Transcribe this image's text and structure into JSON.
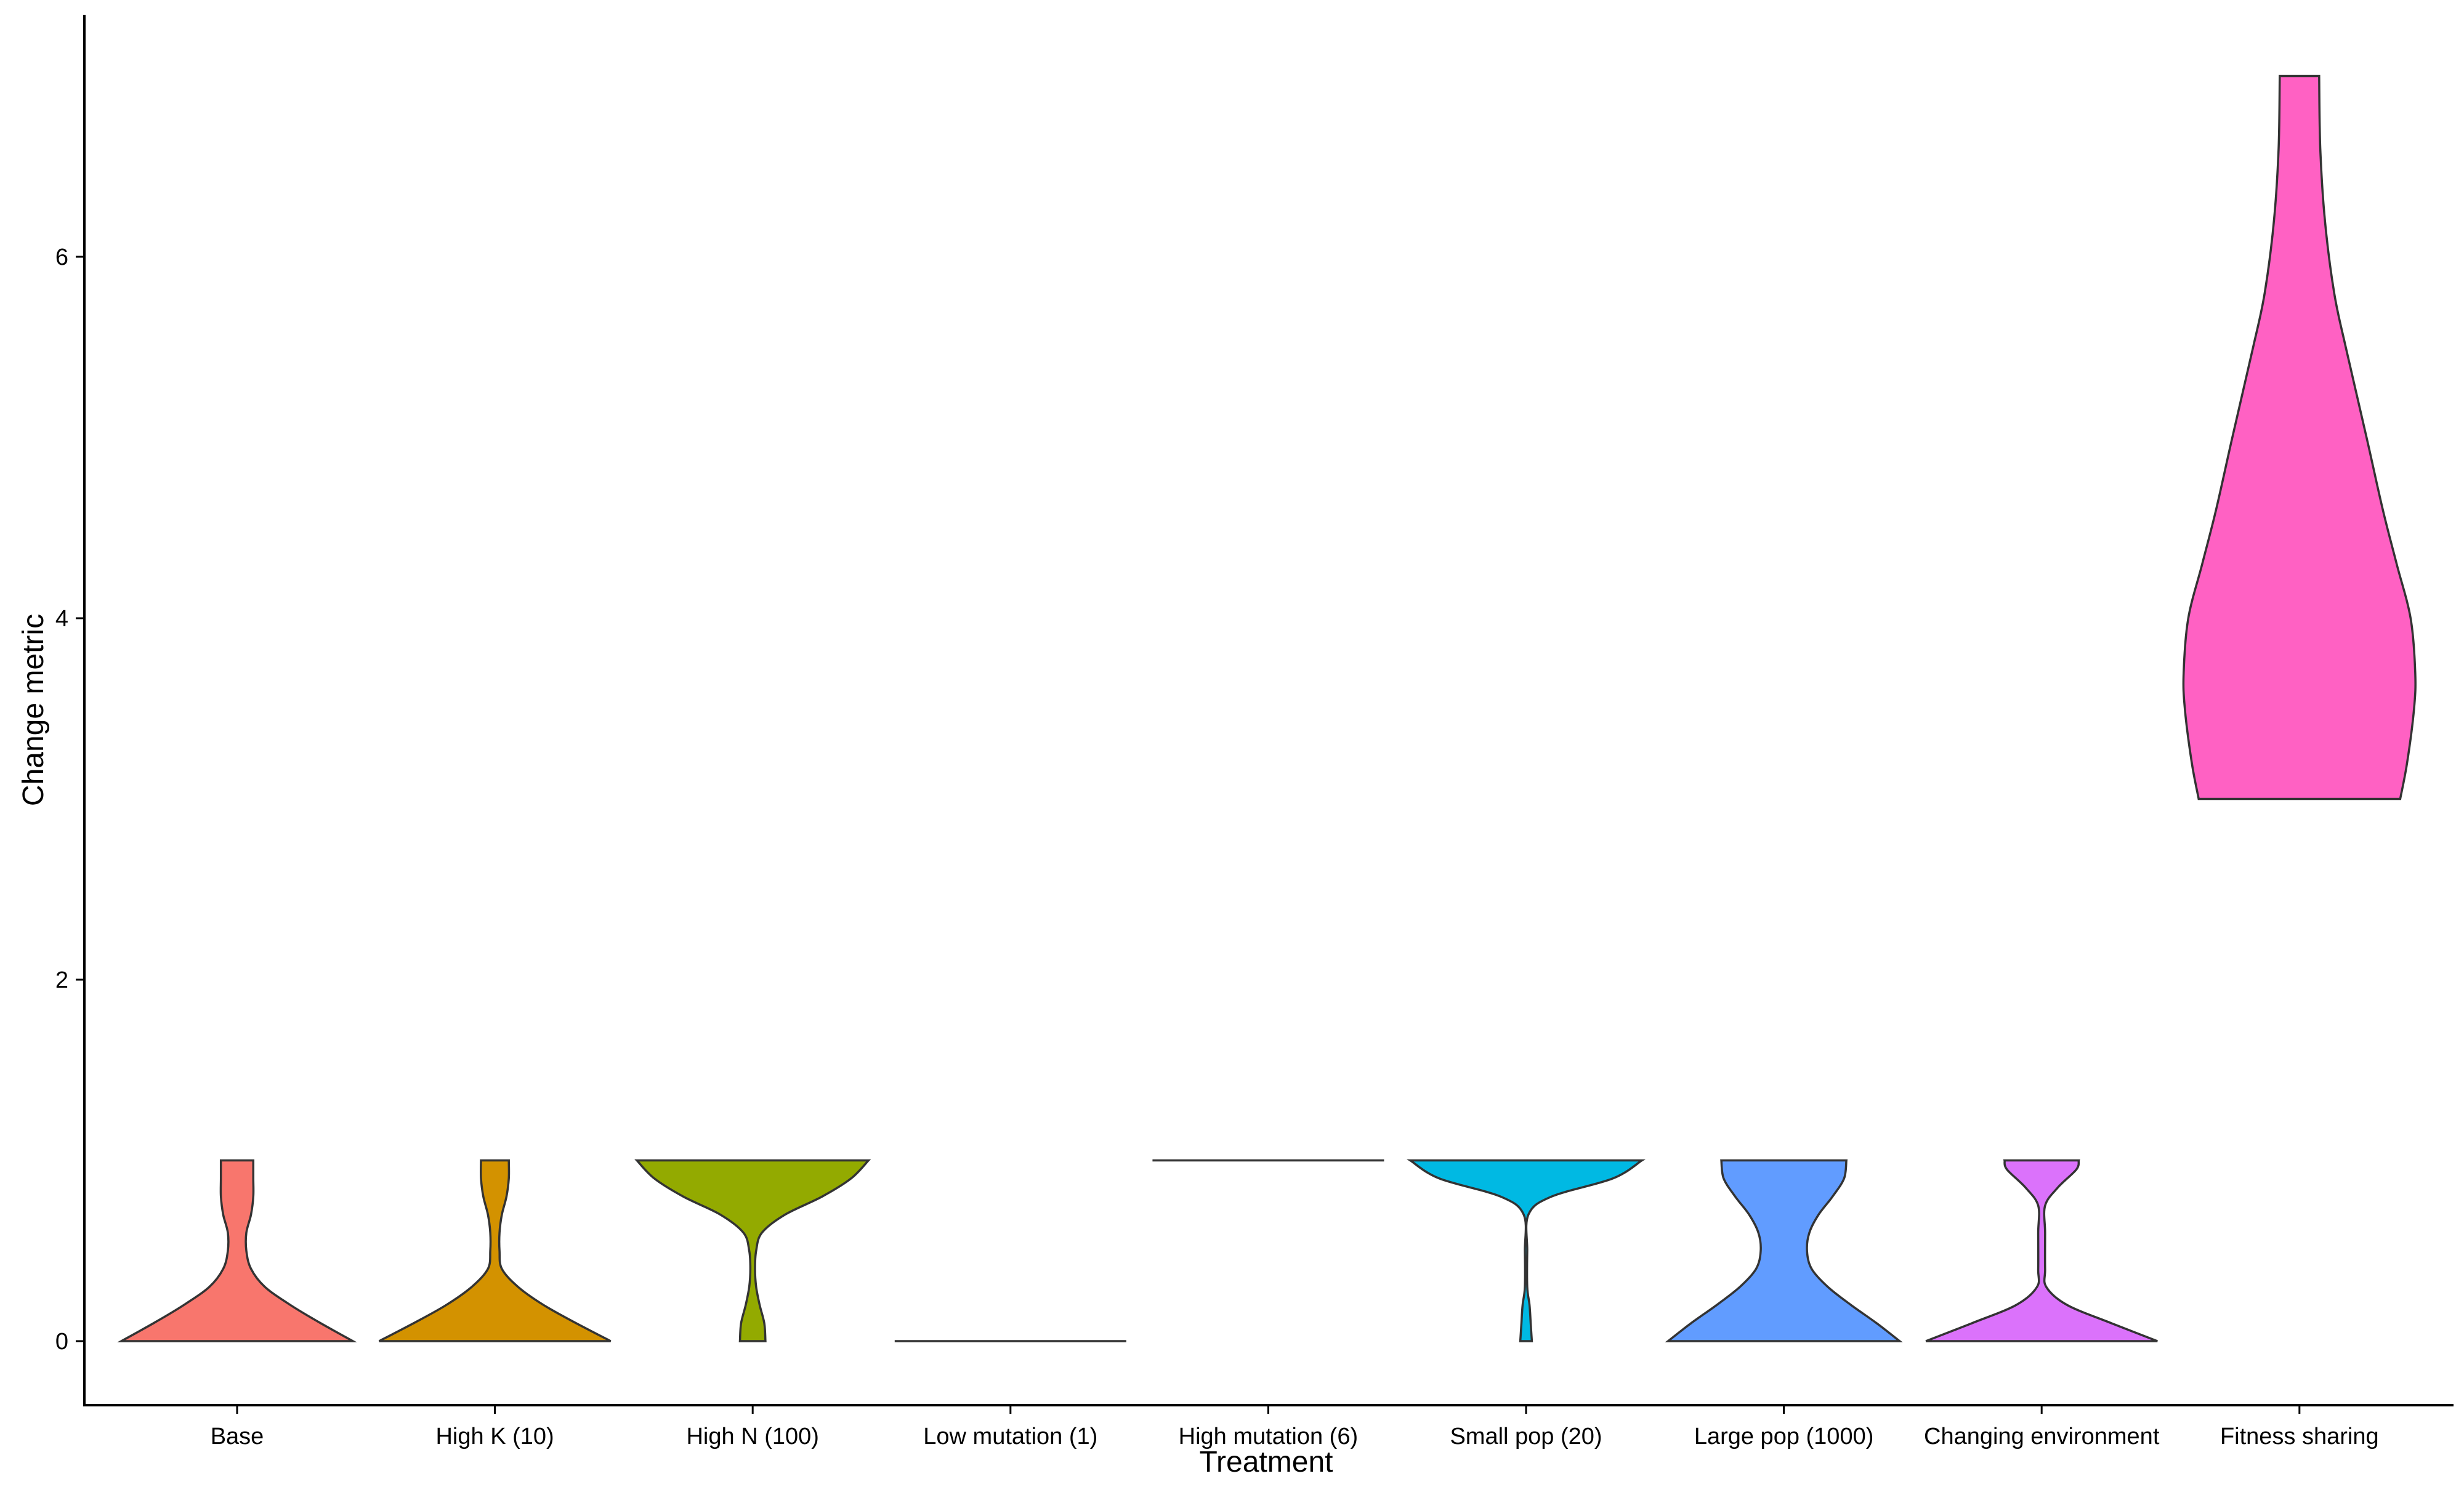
{
  "chart_data": {
    "type": "violin",
    "xlabel": "Treatment",
    "ylabel": "Change metric",
    "ylim": [
      -0.35,
      7.35
    ],
    "yticks": [
      0,
      2,
      4,
      6
    ],
    "ytick_labels": [
      "0",
      "2",
      "4",
      "6"
    ],
    "grid": false,
    "legend": "none",
    "violin_outline_color": "#333333",
    "categories": [
      "Base",
      "High K (10)",
      "High N (100)",
      "Low mutation (1)",
      "High mutation (6)",
      "Small pop (20)",
      "Large pop (1000)",
      "Changing environment",
      "Fitness sharing"
    ],
    "violins": [
      {
        "category": "Base",
        "color": "#F8766D",
        "min": 0,
        "max": 1,
        "density_profile": [
          [
            0,
            1.0
          ],
          [
            0.1,
            0.72
          ],
          [
            0.2,
            0.46
          ],
          [
            0.3,
            0.24
          ],
          [
            0.4,
            0.12
          ],
          [
            0.5,
            0.08
          ],
          [
            0.6,
            0.08
          ],
          [
            0.7,
            0.12
          ],
          [
            0.8,
            0.14
          ],
          [
            0.9,
            0.14
          ],
          [
            1.0,
            0.14
          ]
        ]
      },
      {
        "category": "High K (10)",
        "color": "#D39200",
        "min": 0,
        "max": 1,
        "density_profile": [
          [
            0,
            1.0
          ],
          [
            0.1,
            0.7
          ],
          [
            0.2,
            0.42
          ],
          [
            0.3,
            0.2
          ],
          [
            0.4,
            0.06
          ],
          [
            0.5,
            0.04
          ],
          [
            0.6,
            0.04
          ],
          [
            0.7,
            0.06
          ],
          [
            0.8,
            0.1
          ],
          [
            0.9,
            0.12
          ],
          [
            1.0,
            0.12
          ]
        ]
      },
      {
        "category": "High N (100)",
        "color": "#93AA00",
        "min": 0,
        "max": 1,
        "density_profile": [
          [
            0,
            0.11
          ],
          [
            0.1,
            0.1
          ],
          [
            0.2,
            0.06
          ],
          [
            0.3,
            0.03
          ],
          [
            0.4,
            0.02
          ],
          [
            0.5,
            0.03
          ],
          [
            0.6,
            0.08
          ],
          [
            0.7,
            0.28
          ],
          [
            0.8,
            0.6
          ],
          [
            0.9,
            0.85
          ],
          [
            1.0,
            1.0
          ]
        ]
      },
      {
        "category": "Low mutation (1)",
        "color": "#00BA38",
        "min": 0,
        "max": 0,
        "density_profile": [
          [
            0,
            1.0
          ],
          [
            0,
            1.0
          ]
        ]
      },
      {
        "category": "High mutation (6)",
        "color": "#00C19F",
        "min": 1,
        "max": 1,
        "density_profile": [
          [
            1,
            1.0
          ],
          [
            1,
            1.0
          ]
        ]
      },
      {
        "category": "Small pop (20)",
        "color": "#00B9E3",
        "min": 0,
        "max": 1,
        "density_profile": [
          [
            0,
            0.05
          ],
          [
            0.1,
            0.04
          ],
          [
            0.2,
            0.03
          ],
          [
            0.3,
            0.01
          ],
          [
            0.5,
            0.01
          ],
          [
            0.7,
            0.02
          ],
          [
            0.8,
            0.22
          ],
          [
            0.9,
            0.75
          ],
          [
            1.0,
            1.0
          ]
        ]
      },
      {
        "category": "Large pop (1000)",
        "color": "#619CFF",
        "min": 0,
        "max": 1,
        "density_profile": [
          [
            0,
            1.0
          ],
          [
            0.1,
            0.8
          ],
          [
            0.2,
            0.58
          ],
          [
            0.3,
            0.38
          ],
          [
            0.4,
            0.24
          ],
          [
            0.5,
            0.2
          ],
          [
            0.6,
            0.22
          ],
          [
            0.7,
            0.3
          ],
          [
            0.8,
            0.42
          ],
          [
            0.9,
            0.52
          ],
          [
            1.0,
            0.54
          ]
        ]
      },
      {
        "category": "Changing environment",
        "color": "#DB72FB",
        "min": 0,
        "max": 1,
        "density_profile": [
          [
            0,
            1.0
          ],
          [
            0.1,
            0.6
          ],
          [
            0.2,
            0.22
          ],
          [
            0.3,
            0.04
          ],
          [
            0.4,
            0.03
          ],
          [
            0.6,
            0.03
          ],
          [
            0.75,
            0.03
          ],
          [
            0.85,
            0.14
          ],
          [
            0.95,
            0.3
          ],
          [
            1.0,
            0.32
          ]
        ]
      },
      {
        "category": "Fitness sharing",
        "color": "#FF61C3",
        "min": 3,
        "max": 7,
        "density_profile": [
          [
            3.0,
            0.87
          ],
          [
            3.2,
            0.93
          ],
          [
            3.5,
            0.99
          ],
          [
            3.7,
            1.0
          ],
          [
            4.0,
            0.96
          ],
          [
            4.3,
            0.84
          ],
          [
            4.6,
            0.72
          ],
          [
            5.0,
            0.58
          ],
          [
            5.5,
            0.4
          ],
          [
            5.8,
            0.3
          ],
          [
            6.2,
            0.22
          ],
          [
            6.6,
            0.18
          ],
          [
            7.0,
            0.17
          ]
        ]
      }
    ]
  }
}
